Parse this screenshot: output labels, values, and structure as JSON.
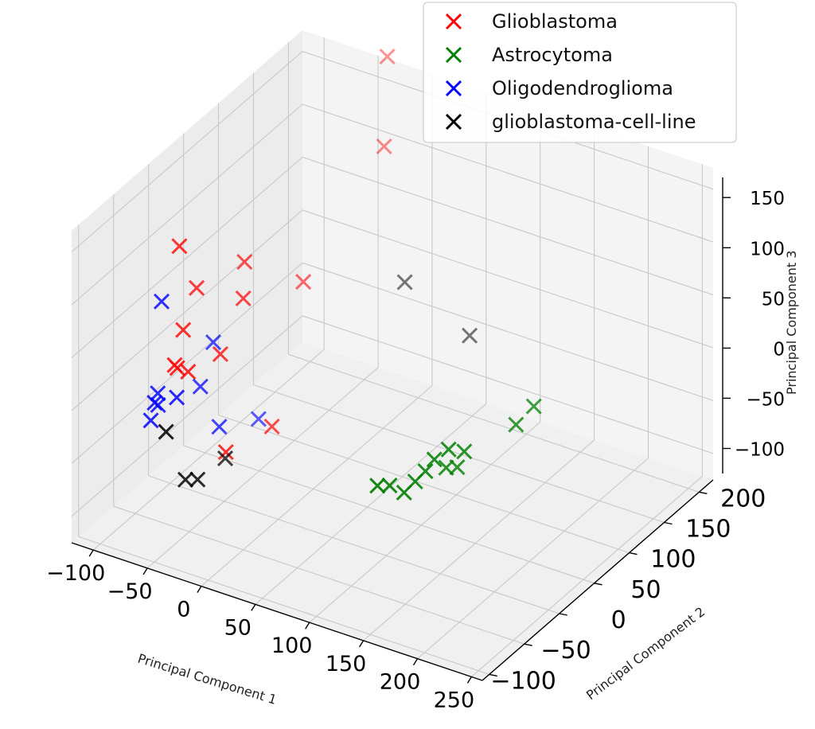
{
  "chart_data": {
    "type": "scatter",
    "projection": "3d",
    "marker": "x",
    "title": "",
    "xlabel": "Principal Component 1",
    "ylabel": "Principal Component 2",
    "zlabel": "Principal Component 3",
    "x_ticks": [
      "−100",
      "−50",
      "0",
      "50",
      "100",
      "150",
      "200",
      "250"
    ],
    "y_ticks": [
      "−100",
      "−50",
      "0",
      "50",
      "100",
      "150",
      "200"
    ],
    "z_ticks": [
      "−100",
      "−50",
      "0",
      "50",
      "100",
      "150"
    ],
    "xlim": [
      -120,
      260
    ],
    "ylim": [
      -110,
      220
    ],
    "zlim": [
      -125,
      170
    ],
    "grid": true,
    "legend_position": "top-right",
    "series": [
      {
        "name": "Glioblastoma",
        "color": "#ff0000",
        "points": [
          [
            -85,
            -10,
            110
          ],
          [
            -82,
            10,
            60
          ],
          [
            -75,
            -20,
            40
          ],
          [
            -70,
            -40,
            20
          ],
          [
            -74,
            -30,
            10
          ],
          [
            -64,
            -30,
            10
          ],
          [
            -55,
            35,
            45
          ],
          [
            -70,
            60,
            60
          ],
          [
            -60,
            10,
            5
          ],
          [
            -48,
            110,
            20
          ],
          [
            -35,
            210,
            180
          ],
          [
            -25,
            190,
            110
          ],
          [
            -35,
            45,
            -75
          ],
          [
            -42,
            -10,
            -70
          ]
        ]
      },
      {
        "name": "Astrocytoma",
        "color": "#008000",
        "points": [
          [
            150,
            -90,
            10
          ],
          [
            158,
            -85,
            10
          ],
          [
            165,
            -75,
            0
          ],
          [
            172,
            -70,
            10
          ],
          [
            175,
            -60,
            15
          ],
          [
            180,
            -55,
            25
          ],
          [
            190,
            -50,
            35
          ],
          [
            198,
            -40,
            30
          ],
          [
            220,
            0,
            40
          ],
          [
            230,
            10,
            55
          ],
          [
            178,
            -35,
            5
          ],
          [
            185,
            -30,
            5
          ]
        ]
      },
      {
        "name": "Oligodendroglioma",
        "color": "#0000ff",
        "points": [
          [
            -95,
            -20,
            60
          ],
          [
            -92,
            -30,
            -20
          ],
          [
            -95,
            -25,
            -35
          ],
          [
            -92,
            -40,
            -40
          ],
          [
            -68,
            -40,
            -10
          ],
          [
            -86,
            40,
            -10
          ],
          [
            -85,
            20,
            -40
          ],
          [
            -74,
            30,
            -80
          ],
          [
            -70,
            80,
            -100
          ],
          [
            -95,
            -30,
            -30
          ]
        ]
      },
      {
        "name": "glioblastoma-cell-line",
        "color": "#000000",
        "points": [
          [
            -65,
            -60,
            -30
          ],
          [
            -60,
            -40,
            -85
          ],
          [
            -52,
            -35,
            -85
          ],
          [
            -62,
            20,
            -100
          ],
          [
            80,
            150,
            -10
          ],
          [
            20,
            150,
            20
          ]
        ]
      }
    ]
  }
}
